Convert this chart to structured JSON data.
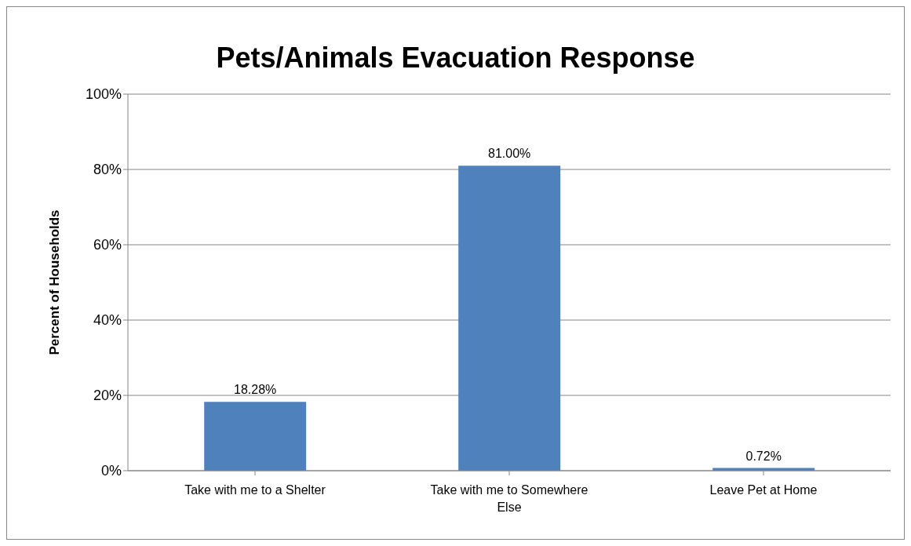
{
  "chart_data": {
    "type": "bar",
    "title": "Pets/Animals Evacuation Response",
    "ylabel": "Percent of Households",
    "categories": [
      "Take with me to a Shelter",
      "Take with me to Somewhere Else",
      "Leave Pet at Home"
    ],
    "values": [
      18.28,
      81.0,
      0.72
    ],
    "color": "#4f81bd",
    "value_labels": [
      "18.28%",
      "81.00%",
      "0.72%"
    ],
    "ylim": [
      0,
      100
    ],
    "yticks": [
      {
        "value": 0,
        "label": "0%"
      },
      {
        "value": 20,
        "label": "20%"
      },
      {
        "value": 40,
        "label": "40%"
      },
      {
        "value": 60,
        "label": "60%"
      },
      {
        "value": 80,
        "label": "80%"
      },
      {
        "value": 100,
        "label": "100%"
      }
    ],
    "grid": "y",
    "legend": false
  }
}
